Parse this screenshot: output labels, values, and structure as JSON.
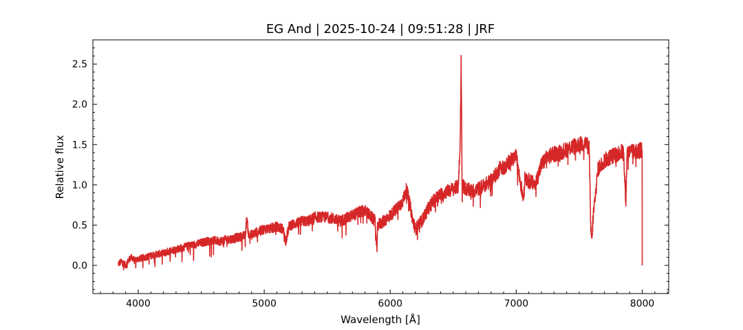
{
  "chart_data": {
    "type": "line",
    "title": "EG And | 2025-10-24 | 09:51:28 | JRF",
    "xlabel": "Wavelength [Å]",
    "ylabel": "Relative flux",
    "xlim": [
      3640,
      8210
    ],
    "ylim": [
      -0.35,
      2.8
    ],
    "xticks": [
      4000,
      5000,
      6000,
      7000,
      8000
    ],
    "xtick_labels": [
      "4000",
      "5000",
      "6000",
      "7000",
      "8000"
    ],
    "yticks": [
      0.0,
      0.5,
      1.0,
      1.5,
      2.0,
      2.5
    ],
    "ytick_labels": [
      "0.0",
      "0.5",
      "1.0",
      "1.5",
      "2.0",
      "2.5"
    ],
    "grid": false,
    "line_color": "#d62728",
    "series": [
      {
        "x": [
          3840,
          3870,
          3900,
          3930,
          3950,
          3970,
          4000,
          4050,
          4100,
          4150,
          4200,
          4250,
          4300,
          4350,
          4400,
          4450,
          4500,
          4550,
          4600,
          4650,
          4700,
          4750,
          4800,
          4850,
          4862,
          4875,
          4900,
          4950,
          5000,
          5050,
          5100,
          5150,
          5170,
          5200,
          5250,
          5300,
          5350,
          5400,
          5450,
          5500,
          5550,
          5600,
          5650,
          5700,
          5750,
          5800,
          5850,
          5880,
          5893,
          5900,
          5950,
          6000,
          6050,
          6100,
          6130,
          6150,
          6180,
          6200,
          6250,
          6300,
          6350,
          6400,
          6450,
          6500,
          6540,
          6555,
          6563,
          6570,
          6600,
          6650,
          6700,
          6750,
          6800,
          6850,
          6880,
          6900,
          6950,
          7000,
          7030,
          7055,
          7070,
          7100,
          7150,
          7200,
          7250,
          7300,
          7350,
          7400,
          7450,
          7500,
          7550,
          7580,
          7590,
          7600,
          7610,
          7630,
          7650,
          7700,
          7750,
          7800,
          7850,
          7870,
          7880,
          7900,
          7950,
          8000
        ],
        "y": [
          0.02,
          0.05,
          0.0,
          0.08,
          0.1,
          0.06,
          0.08,
          0.1,
          0.12,
          0.14,
          0.15,
          0.18,
          0.2,
          0.22,
          0.24,
          0.26,
          0.28,
          0.3,
          0.31,
          0.3,
          0.32,
          0.33,
          0.35,
          0.37,
          0.6,
          0.38,
          0.38,
          0.42,
          0.45,
          0.46,
          0.48,
          0.45,
          0.3,
          0.5,
          0.52,
          0.55,
          0.55,
          0.6,
          0.6,
          0.6,
          0.58,
          0.55,
          0.58,
          0.62,
          0.66,
          0.68,
          0.6,
          0.55,
          0.15,
          0.5,
          0.55,
          0.62,
          0.7,
          0.8,
          0.95,
          0.8,
          0.55,
          0.45,
          0.55,
          0.7,
          0.82,
          0.88,
          0.92,
          0.95,
          0.98,
          1.5,
          2.6,
          1.0,
          0.95,
          0.92,
          0.95,
          1.0,
          1.05,
          1.15,
          1.25,
          1.2,
          1.3,
          1.35,
          1.05,
          0.85,
          1.1,
          1.05,
          1.0,
          1.25,
          1.35,
          1.38,
          1.4,
          1.44,
          1.48,
          1.5,
          1.52,
          1.45,
          0.5,
          0.3,
          0.6,
          0.9,
          1.2,
          1.3,
          1.35,
          1.38,
          1.42,
          0.8,
          1.4,
          1.4,
          1.42,
          1.43
        ]
      }
    ]
  }
}
